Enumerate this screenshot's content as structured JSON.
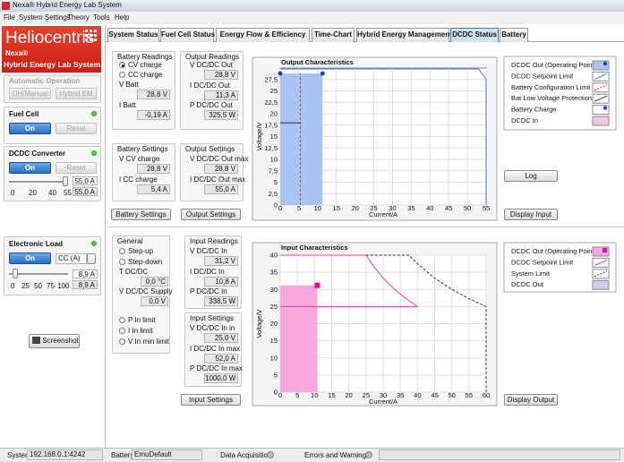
{
  "window": {
    "title": "Nexa® Hybrid Energy Lab System"
  },
  "menu": [
    "File",
    "System Settings",
    "Theory",
    "Tools",
    "Help"
  ],
  "sidebar": {
    "logo": "Heliocentris",
    "brand": "Nexa®",
    "product": "Hybrid Energy Lab System",
    "automatic": {
      "title": "Automatic Operation",
      "buttons": [
        "OH/Manual",
        "Hybrid EM"
      ]
    },
    "fuel_cell": {
      "title": "Fuel Cell",
      "on": "On",
      "reset": "Reset"
    },
    "dcdc": {
      "title": "DCDC Converter",
      "on": "On",
      "reset": "Reset",
      "slider_ticks": [
        0,
        20,
        40,
        55
      ],
      "setpoint": "55,0 A",
      "actual": "55,0 A"
    },
    "load": {
      "title": "Electronic Load",
      "on": "On",
      "mode": "CC (A)",
      "slider_ticks": [
        0,
        25,
        50,
        75,
        100
      ],
      "setpoint": "8,9 A",
      "actual": "8,9 A"
    },
    "screenshot": "Screenshot"
  },
  "tabs": {
    "items": [
      "System Status",
      "Fuel Cell Status",
      "Energy Flow & Efficiency",
      "Time-Chart",
      "Hybrid Energy Management",
      "DCDC Status",
      "Battery"
    ],
    "active": 5
  },
  "output": {
    "battery_readings": {
      "title": "Battery Readings",
      "modes": [
        "CV charge",
        "CC charge"
      ],
      "selected": 0,
      "fields": [
        {
          "label": "V Batt",
          "value": "28,8 V"
        },
        {
          "label": "I Batt",
          "value": "-0,19 A"
        }
      ]
    },
    "output_readings": {
      "title": "Output Readings",
      "fields": [
        {
          "label": "V DC/DC Out",
          "value": "28,8 V"
        },
        {
          "label": "I DC/DC Out",
          "value": "11,3 A"
        },
        {
          "label": "P DC/DC Out",
          "value": "325,5 W"
        }
      ]
    },
    "battery_settings": {
      "title": "Battery Settings",
      "fields": [
        {
          "label": "V CV charge",
          "value": "28,8 V"
        },
        {
          "label": "I CC charge",
          "value": "5,4 A"
        }
      ]
    },
    "output_settings": {
      "title": "Output Settings",
      "fields": [
        {
          "label": "V DC/DC Out max",
          "value": "28,8 V"
        },
        {
          "label": "I DC/DC Out max",
          "value": "55,0 A"
        }
      ]
    },
    "buttons": [
      "Battery Settings",
      "Output Settings"
    ],
    "chart": {
      "type": "line",
      "title": "Output Characteristics",
      "xlabel": "Current/A",
      "ylabel": "Voltage/V",
      "xlim": [
        0,
        55
      ],
      "ylim": [
        0,
        30
      ],
      "xticks": [
        0,
        5,
        10,
        15,
        20,
        25,
        30,
        35,
        40,
        45,
        50,
        55
      ],
      "yticks": [
        0,
        {
          "value": 2.5,
          "label": "2,5"
        },
        5,
        {
          "value": 7.5,
          "label": "7,5"
        },
        10,
        {
          "value": 12.5,
          "label": "12,5"
        },
        15,
        {
          "value": 17.5,
          "label": "17,5"
        },
        20,
        {
          "value": 22.5,
          "label": "22,5"
        },
        25,
        {
          "value": 27.5,
          "label": "27,5"
        }
      ],
      "grid": true,
      "series": [
        {
          "name": "DCDC Out (Operating Point)",
          "kind": "area",
          "color": "#a9c3f5",
          "marker": "circle",
          "marker_color": "#1f3fbf",
          "marker_at": "all",
          "x": [
            0,
            11.3
          ],
          "y": [
            28.8,
            28.8
          ]
        },
        {
          "name": "DCDC Setpoint Limit",
          "kind": "line",
          "color": "#4a78d0",
          "dashed": false,
          "x": [
            0,
            53,
            55,
            55
          ],
          "y": [
            29.8,
            29.8,
            27.5,
            0
          ]
        },
        {
          "name": "Battery Configuration Limit",
          "kind": "line",
          "color": "#e03030",
          "dashed": true,
          "x": [
            5.4,
            5.4
          ],
          "y": [
            0,
            28.8
          ]
        },
        {
          "name": "Bat Low Voltage Protection",
          "kind": "line",
          "color": "#333333",
          "dashed": false,
          "x": [
            0,
            5.4
          ],
          "y": [
            18,
            18
          ]
        },
        {
          "name": "Battery Charge",
          "kind": "point",
          "color": "#1f4fd0",
          "marker": "circle",
          "x": [],
          "y": []
        },
        {
          "name": "DCDC In",
          "kind": "area",
          "color": "#f4c8e0",
          "x": [],
          "y": []
        }
      ]
    },
    "side_buttons": [
      "Log",
      "Display Input"
    ]
  },
  "input": {
    "general": {
      "title": "General",
      "modes": [
        "Step-up",
        "Step-down"
      ],
      "fields": [
        {
          "label": "T DC/DC",
          "value": "0,0 °C"
        },
        {
          "label": "V DC/DC Supply",
          "value": "0,0 V"
        }
      ],
      "limits": [
        "P In limit",
        "I In limit",
        "V In min limit"
      ]
    },
    "input_readings": {
      "title": "Input Readings",
      "fields": [
        {
          "label": "V DC/DC In",
          "value": "31,2 V"
        },
        {
          "label": "I DC/DC In",
          "value": "10,8 A"
        },
        {
          "label": "P DC/DC In",
          "value": "338,5 W"
        }
      ]
    },
    "input_settings": {
      "title": "Input Settings",
      "fields": [
        {
          "label": "V DC/DC In in",
          "value": "25,0 V"
        },
        {
          "label": "I DC/DC In max",
          "value": "52,0 A"
        },
        {
          "label": "P DC/DC In max",
          "value": "1000,0 W"
        }
      ]
    },
    "button": "Input Settings",
    "chart": {
      "type": "line",
      "title": "Input Characteristics",
      "xlabel": "Current/A",
      "ylabel": "Voltage/V",
      "xlim": [
        0,
        60
      ],
      "ylim": [
        0,
        40
      ],
      "xticks": [
        0,
        5,
        10,
        15,
        20,
        25,
        30,
        35,
        40,
        45,
        50,
        55,
        60
      ],
      "yticks": [
        0,
        5,
        10,
        15,
        20,
        25,
        30,
        35,
        40
      ],
      "grid": true,
      "series": [
        {
          "name": "DCDC Out (Operating Point)",
          "kind": "area",
          "color": "#f7a8dc",
          "marker": "square",
          "marker_color": "#e0109a",
          "marker_at": "end",
          "x": [
            0,
            10.8
          ],
          "y": [
            31.2,
            31.2
          ]
        },
        {
          "name": "DCDC Setpoint Limit",
          "kind": "line",
          "color": "#e040b0",
          "dashed": false,
          "x": [
            0,
            25,
            27.5,
            30,
            32.5,
            35,
            37.5,
            40,
            0
          ],
          "y": [
            40,
            40,
            36.4,
            33.3,
            30.8,
            28.6,
            26.7,
            25,
            25
          ]
        },
        {
          "name": "System Limit",
          "kind": "line",
          "color": "#333333",
          "dashed": true,
          "x": [
            25,
            37.5,
            40,
            45,
            50,
            55,
            60,
            60
          ],
          "y": [
            40,
            40,
            37.5,
            33.3,
            30,
            27.3,
            25,
            0
          ]
        },
        {
          "name": "DCDC Out",
          "kind": "area",
          "color": "#c8d0e8",
          "x": [],
          "y": []
        }
      ]
    },
    "side_button": "Display Output"
  },
  "status": {
    "system_label": "System",
    "system": "192.168.0.1:4242",
    "battery_label": "Battery",
    "battery": "EmuDefault",
    "acquisition": "Data Acquisition",
    "errors": "Errors and Warnings"
  }
}
